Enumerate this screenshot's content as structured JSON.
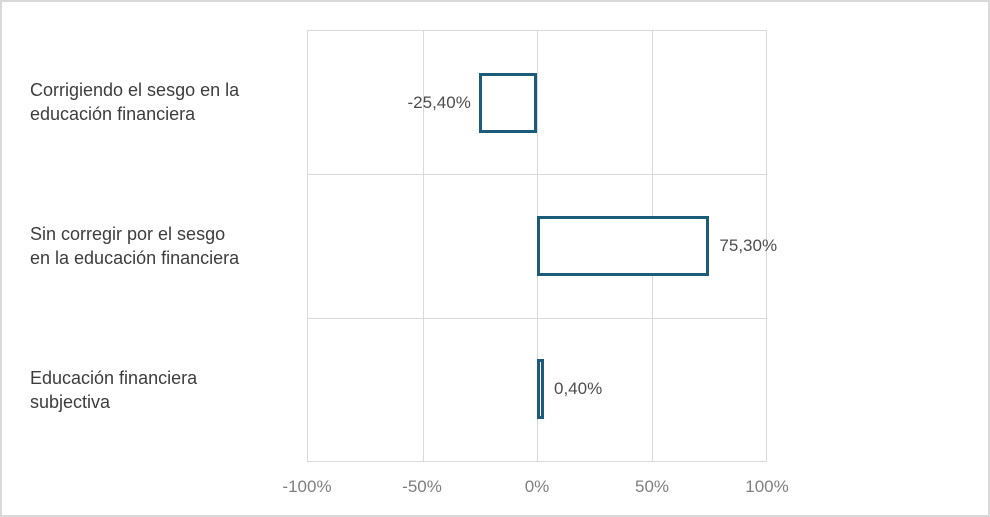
{
  "chart_data": {
    "type": "bar",
    "orientation": "horizontal",
    "categories": [
      "Corrigiendo el sesgo en la educación financiera",
      "Sin corregir por el sesgo en la educación financiera",
      "Educación financiera subjectiva"
    ],
    "values": [
      -25.4,
      75.3,
      0.4
    ],
    "data_labels": [
      "-25,40%",
      "75,30%",
      "0,40%"
    ],
    "xlim": [
      -100,
      100
    ],
    "x_tick_labels": [
      "-100%",
      "-50%",
      "0%",
      "50%",
      "100%"
    ],
    "grid": true,
    "legend": false
  },
  "colors": {
    "bar_border": "#1c5b7a",
    "bar_fill": "#ffffff",
    "gridline": "#d9d9d9",
    "figure_border": "#d9d9d9",
    "category_label": "#3d3d3d",
    "data_label": "#4d4d4d",
    "axis_tick_label": "#7f7f7f",
    "background": "#ffffff"
  }
}
